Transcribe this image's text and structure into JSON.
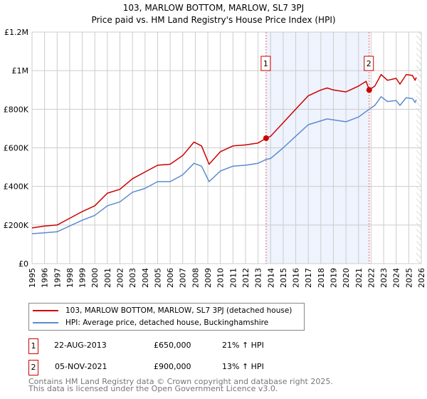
{
  "title": "103, MARLOW BOTTOM, MARLOW, SL7 3PJ",
  "subtitle": "Price paid vs. HM Land Registry's House Price Index (HPI)",
  "colors": {
    "property": "#cc0000",
    "hpi": "#5b8bd0",
    "shade": "#eef3fd"
  },
  "chart_data": {
    "type": "line",
    "title": "103, MARLOW BOTTOM, MARLOW, SL7 3PJ",
    "subtitle": "Price paid vs. HM Land Registry's House Price Index (HPI)",
    "xlim": [
      1995,
      2026
    ],
    "ylim": [
      0,
      1200000
    ],
    "grid": true,
    "y_ticks": [
      {
        "v": 0,
        "label": "£0"
      },
      {
        "v": 200000,
        "label": "£200K"
      },
      {
        "v": 400000,
        "label": "£400K"
      },
      {
        "v": 600000,
        "label": "£600K"
      },
      {
        "v": 800000,
        "label": "£800K"
      },
      {
        "v": 1000000,
        "label": "£1M"
      },
      {
        "v": 1200000,
        "label": "£1.2M"
      }
    ],
    "x_ticks": [
      "1995",
      "1996",
      "1997",
      "1998",
      "1999",
      "2000",
      "2001",
      "2002",
      "2003",
      "2004",
      "2005",
      "2006",
      "2007",
      "2008",
      "2009",
      "2010",
      "2011",
      "2012",
      "2013",
      "2014",
      "2015",
      "2016",
      "2017",
      "2018",
      "2019",
      "2020",
      "2021",
      "2022",
      "2023",
      "2024",
      "2025",
      "2026"
    ],
    "shaded_range": [
      2013.64,
      2021.85
    ],
    "forecast_hatch_from": 2025.6,
    "series": [
      {
        "name": "103, MARLOW BOTTOM, MARLOW, SL7 3PJ (detached house)",
        "color": "#cc0000",
        "x": [
          1995,
          1996,
          1997,
          1998,
          1999,
          2000,
          2001,
          2002,
          2003,
          2004,
          2005,
          2006,
          2007,
          2007.9,
          2008.5,
          2009.1,
          2010,
          2011,
          2012,
          2013,
          2013.64,
          2014,
          2015,
          2016,
          2017,
          2018,
          2018.5,
          2019,
          2020,
          2021,
          2021.6,
          2021.85,
          2022.3,
          2022.8,
          2023.3,
          2024,
          2024.3,
          2024.8,
          2025.3,
          2025.5,
          2025.6
        ],
        "y": [
          185000,
          195000,
          200000,
          235000,
          270000,
          300000,
          365000,
          385000,
          440000,
          475000,
          510000,
          515000,
          560000,
          630000,
          610000,
          515000,
          580000,
          610000,
          615000,
          625000,
          650000,
          660000,
          730000,
          800000,
          870000,
          900000,
          910000,
          900000,
          890000,
          920000,
          945000,
          900000,
          920000,
          980000,
          950000,
          960000,
          930000,
          980000,
          975000,
          950000,
          965000
        ]
      },
      {
        "name": "HPI: Average price, detached house, Buckinghamshire",
        "color": "#5b8bd0",
        "x": [
          1995,
          1996,
          1997,
          1998,
          1999,
          2000,
          2001,
          2002,
          2003,
          2004,
          2005,
          2006,
          2007,
          2007.9,
          2008.5,
          2009.1,
          2010,
          2011,
          2012,
          2013,
          2013.64,
          2014,
          2015,
          2016,
          2017,
          2018,
          2018.5,
          2019,
          2020,
          2021,
          2021.85,
          2022.3,
          2022.8,
          2023.3,
          2024,
          2024.3,
          2024.8,
          2025.3,
          2025.5,
          2025.6
        ],
        "y": [
          155000,
          160000,
          165000,
          195000,
          225000,
          250000,
          300000,
          320000,
          370000,
          390000,
          425000,
          425000,
          460000,
          520000,
          505000,
          425000,
          480000,
          505000,
          510000,
          520000,
          540000,
          545000,
          600000,
          660000,
          720000,
          740000,
          750000,
          745000,
          735000,
          760000,
          800000,
          820000,
          865000,
          840000,
          845000,
          820000,
          860000,
          855000,
          835000,
          850000
        ]
      }
    ],
    "annotations": [
      {
        "label": "1",
        "x": 2013.64,
        "y": 650000
      },
      {
        "label": "2",
        "x": 2021.85,
        "y": 900000
      }
    ]
  },
  "legend": {
    "property": "103, MARLOW BOTTOM, MARLOW, SL7 3PJ (detached house)",
    "hpi": "HPI: Average price, detached house, Buckinghamshire"
  },
  "transactions": [
    {
      "num": "1",
      "date": "22-AUG-2013",
      "price": "£650,000",
      "hpi": "21% ↑ HPI"
    },
    {
      "num": "2",
      "date": "05-NOV-2021",
      "price": "£900,000",
      "hpi": "13% ↑ HPI"
    }
  ],
  "footer": {
    "line1": "Contains HM Land Registry data © Crown copyright and database right 2025.",
    "line2": "This data is licensed under the Open Government Licence v3.0."
  }
}
